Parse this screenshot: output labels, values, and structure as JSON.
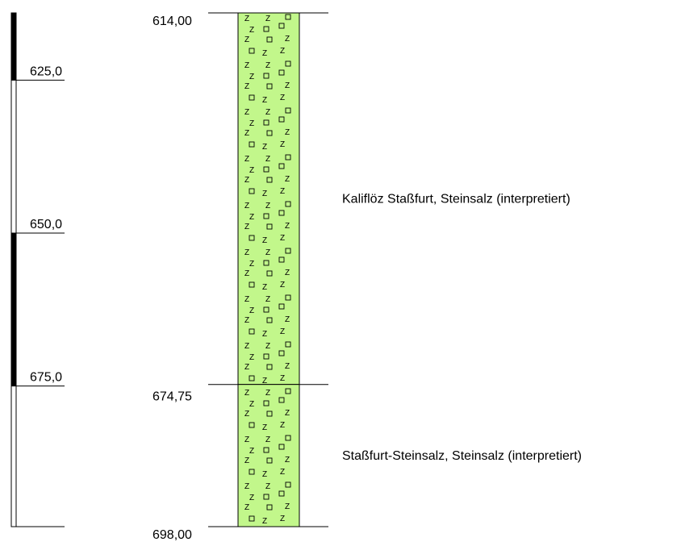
{
  "chart_data": {
    "type": "borehole_log",
    "scale": {
      "ticks": [
        "625,0",
        "650,0",
        "675,0"
      ],
      "tick_values": [
        625,
        650,
        675
      ],
      "range": [
        614,
        698
      ]
    },
    "layers": [
      {
        "top": 614,
        "bottom": 674.75,
        "top_label": "614,00",
        "description": "Kaliflöz Staßfurt, Steinsalz (interpretiert)",
        "fill_color": "#c2f78b",
        "pattern": "salt-z-square"
      },
      {
        "top": 674.75,
        "bottom": 698,
        "top_label": "674,75",
        "description": "Staßfurt-Steinsalz, Steinsalz (interpretiert)",
        "fill_color": "#c2f78b",
        "pattern": "salt-z-square"
      }
    ],
    "base_label": "698,00"
  }
}
